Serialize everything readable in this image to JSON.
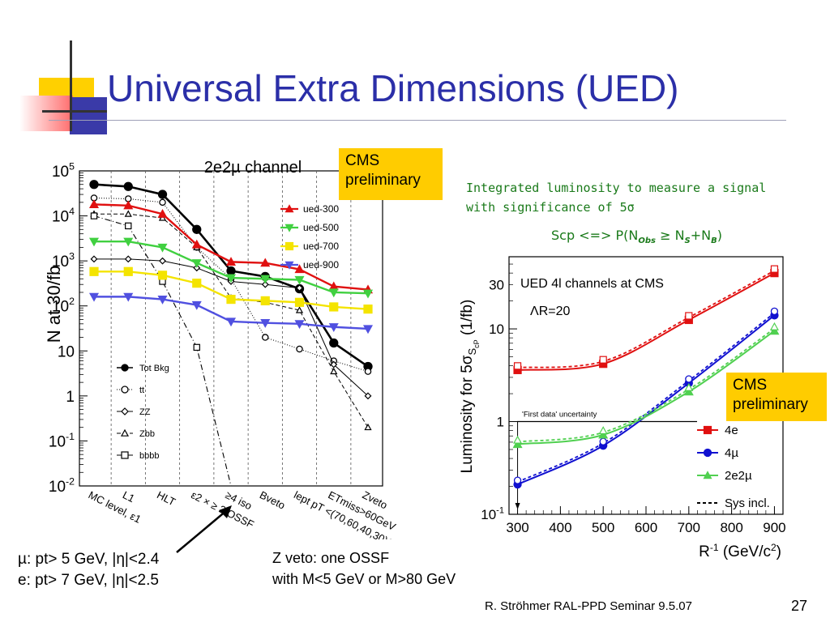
{
  "slide": {
    "title": "Universal Extra Dimensions (UED)",
    "cms_label_1": "CMS\npreliminary",
    "cms_label_2": "CMS\npreliminary",
    "lumi_note_line1": "Integrated luminosity to measure a signal",
    "lumi_note_line2": "with significance of 5σ",
    "scp_text": "Scp <=> P(N",
    "scp_sub_obs": "Obs",
    "scp_mid": " ≥ N",
    "scp_sub_s": "S",
    "scp_plus": "+N",
    "scp_sub_b": "B",
    "scp_close": ")",
    "mu_cut": "µ:  pt> 5 GeV, |η|<2.4",
    "e_cut": "e:  pt> 7 GeV, |η|<2.5",
    "zveto_line1": "Z veto: one OSSF",
    "zveto_line2": "with M<5 GeV or M>80 GeV",
    "author": "R. Ströhmer   RAL-PPD Seminar 9.5.07",
    "page_number": "27",
    "colors": {
      "title": "#2b2fa8",
      "cms_box": "#ffcc00",
      "note_green": "#1a7a1a"
    }
  },
  "chart_data": [
    {
      "type": "line",
      "title": "2e2µ channel",
      "ylabel": "N at 30/fb",
      "yscale": "log",
      "ylim": [
        0.01,
        100000
      ],
      "yticks": [
        "10^-2",
        "10^-1",
        "1",
        "10",
        "10^2",
        "10^3",
        "10^4",
        "10^5"
      ],
      "categories": [
        "MC level, ε1",
        "L1",
        "HLT",
        "ε2 × ≥ 2 OSSF",
        "≥4 iso",
        "Bveto",
        "lept pT <(70,60,40,30)GeV",
        "ETmiss>60GeV",
        "Zveto"
      ],
      "series": [
        {
          "name": "Tot Bkg",
          "x": [
            0,
            1,
            2,
            3,
            4,
            5,
            6,
            7,
            8
          ],
          "values": [
            50000,
            45000,
            30000,
            5000,
            600,
            450,
            240,
            15,
            4.5
          ]
        },
        {
          "name": "tt",
          "x": [
            0,
            1,
            2,
            3,
            4,
            5,
            6,
            7,
            8
          ],
          "values": [
            25000,
            24000,
            20000,
            2000,
            400,
            20,
            11,
            6,
            3.5
          ]
        },
        {
          "name": "ZZ",
          "x": [
            0,
            1,
            2,
            3,
            4,
            5,
            6,
            7,
            8
          ],
          "values": [
            1100,
            1100,
            1000,
            700,
            350,
            300,
            250,
            5,
            1
          ]
        },
        {
          "name": "Zbb",
          "x": [
            0,
            1,
            2,
            3,
            4,
            5,
            6,
            7,
            8
          ],
          "values": [
            11000,
            11000,
            9000,
            2000,
            150,
            120,
            80,
            3.5,
            0.2
          ]
        },
        {
          "name": "bbbb",
          "x": [
            0,
            1,
            2,
            3,
            4
          ],
          "values": [
            10000,
            6000,
            350,
            12,
            0.01
          ]
        },
        {
          "name": "ued-300",
          "x": [
            0,
            1,
            2,
            3,
            4,
            5,
            6,
            7,
            8
          ],
          "values": [
            18000,
            17000,
            11000,
            2300,
            950,
            900,
            650,
            270,
            230
          ]
        },
        {
          "name": "ued-500",
          "x": [
            0,
            1,
            2,
            3,
            4,
            5,
            6,
            7,
            8
          ],
          "values": [
            2700,
            2700,
            2000,
            900,
            420,
            400,
            380,
            200,
            190
          ]
        },
        {
          "name": "ued-700",
          "x": [
            0,
            1,
            2,
            3,
            4,
            5,
            6,
            7,
            8
          ],
          "values": [
            580,
            580,
            480,
            320,
            140,
            130,
            120,
            95,
            85
          ]
        },
        {
          "name": "ued-900",
          "x": [
            0,
            1,
            2,
            3,
            4,
            5,
            6,
            7,
            8
          ],
          "values": [
            160,
            160,
            140,
            105,
            45,
            42,
            40,
            34,
            31
          ]
        }
      ]
    },
    {
      "type": "line",
      "title": "UED 4l channels at CMS",
      "annotation": "ΛR=20",
      "xlabel": "R^-1 (GeV/c^2)",
      "ylabel": "Luminosity for 5σ_S_cP (1/fb)",
      "yscale": "log",
      "xlim": [
        280,
        920
      ],
      "ylim": [
        0.1,
        60
      ],
      "xticks": [
        300,
        400,
        500,
        600,
        700,
        800,
        900
      ],
      "yticks": [
        "10^-1",
        "1",
        "10",
        "30"
      ],
      "reference_line": {
        "label": "'First data' uncertainty",
        "y": 1
      },
      "series": [
        {
          "name": "4e",
          "x": [
            300,
            500,
            700,
            900
          ],
          "values": [
            3.6,
            4.2,
            12.5,
            40
          ]
        },
        {
          "name": "4µ",
          "x": [
            300,
            500,
            700,
            900
          ],
          "values": [
            0.21,
            0.55,
            2.6,
            14
          ]
        },
        {
          "name": "2e2µ",
          "x": [
            300,
            500,
            700,
            900
          ],
          "values": [
            0.57,
            0.72,
            2.1,
            9.5
          ]
        },
        {
          "name": "Sys incl.",
          "style": "dashed"
        }
      ]
    }
  ]
}
